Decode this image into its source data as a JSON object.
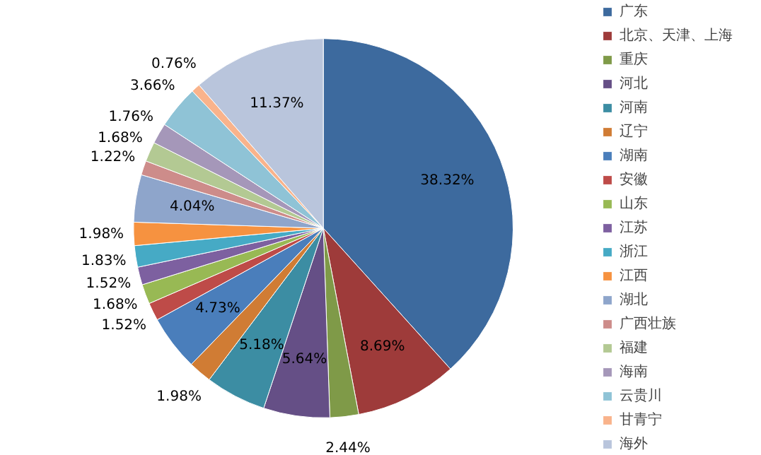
{
  "chart_data": {
    "type": "pie",
    "legend": "right",
    "categories": [
      "广东",
      "北京、天津、上海",
      "重庆",
      "河北",
      "河南",
      "辽宁",
      "湖南",
      "安徽",
      "山东",
      "江苏",
      "浙江",
      "江西",
      "湖北",
      "广西壮族",
      "福建",
      "海南",
      "云贵川",
      "甘青宁",
      "海外"
    ],
    "values": [
      38.32,
      8.69,
      2.44,
      5.64,
      5.18,
      1.98,
      4.73,
      1.52,
      1.68,
      1.52,
      1.83,
      1.98,
      4.04,
      1.22,
      1.68,
      1.76,
      3.66,
      0.76,
      11.37
    ],
    "value_labels": [
      "38.32%",
      "8.69%",
      "2.44%",
      "5.64%",
      "5.18%",
      "1.98%",
      "4.73%",
      "1.52%",
      "1.68%",
      "1.52%",
      "1.83%",
      "1.98%",
      "4.04%",
      "1.22%",
      "1.68%",
      "1.76%",
      "3.66%",
      "0.76%",
      "11.37%"
    ],
    "colors": [
      "#3d6a9e",
      "#9e3b3a",
      "#7f9a48",
      "#654f86",
      "#3c8da3",
      "#d07c34",
      "#4a7ebb",
      "#be4b48",
      "#98b954",
      "#7d60a0",
      "#46aac5",
      "#f69240",
      "#8ea5cb",
      "#cd8c8a",
      "#b3c993",
      "#a597b9",
      "#8fc3d6",
      "#f9b38b",
      "#b9c5dc"
    ]
  }
}
